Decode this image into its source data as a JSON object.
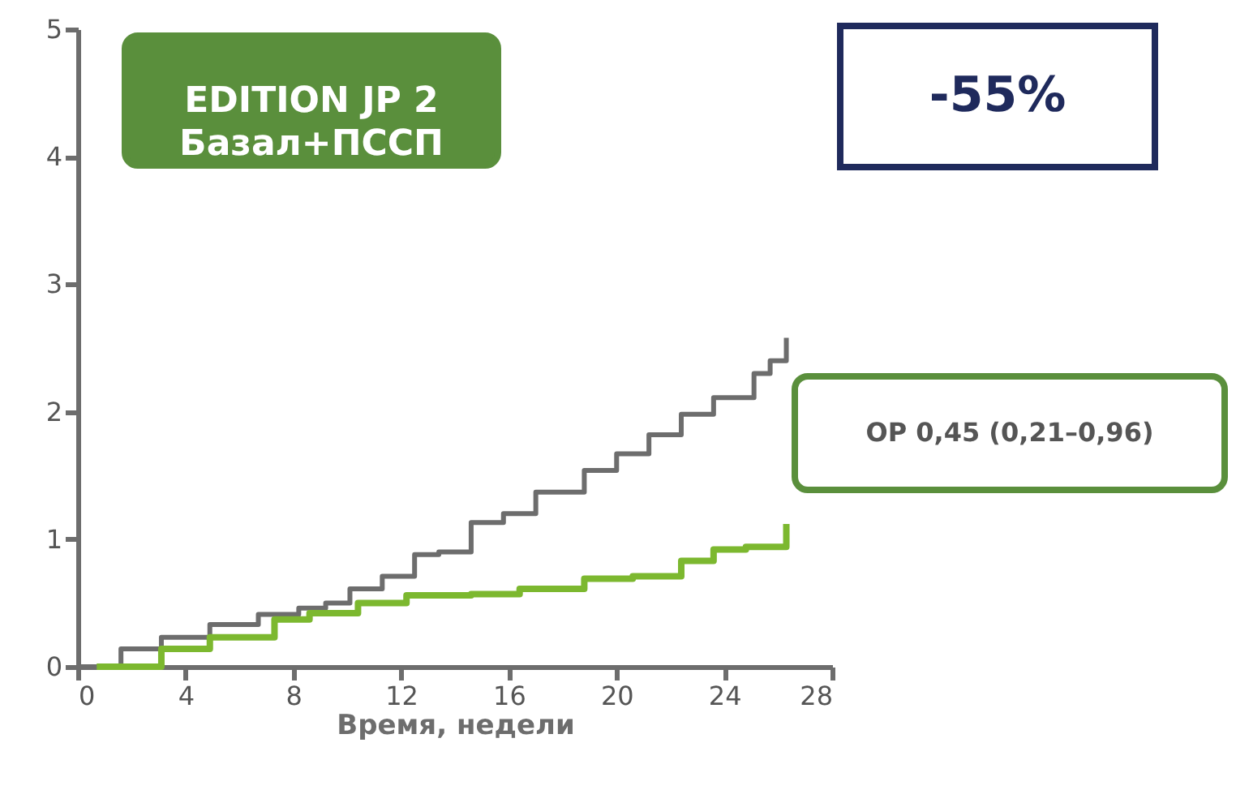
{
  "chart_data": {
    "type": "step",
    "xlabel": "Время, недели",
    "xlim": [
      0,
      28
    ],
    "xticks": [
      0,
      4,
      8,
      12,
      16,
      20,
      24,
      28
    ],
    "ylim": [
      0,
      5
    ],
    "yticks": [
      0,
      1,
      2,
      3,
      4,
      5
    ],
    "grid": false,
    "line_style": "solid",
    "series": [
      {
        "color": "#6d6d6d",
        "x": [
          0,
          1.6,
          3.1,
          4.9,
          6.7,
          8.2,
          9.2,
          10.1,
          11.3,
          12.5,
          13.4,
          14.6,
          15.8,
          17,
          18.8,
          20,
          21.2,
          22.4,
          23.6,
          25.1,
          25.7,
          26.3
        ],
        "values": [
          0,
          0.14,
          0.23,
          0.33,
          0.41,
          0.46,
          0.5,
          0.61,
          0.71,
          0.88,
          0.9,
          1.13,
          1.2,
          1.37,
          1.54,
          1.67,
          1.82,
          1.98,
          2.11,
          2.3,
          2.4,
          2.58
        ]
      },
      {
        "color": "#7cb82f",
        "x": [
          0.7,
          3.1,
          4.9,
          7.3,
          8.6,
          10.4,
          12.2,
          14.6,
          16.4,
          18.8,
          20.6,
          22.4,
          23.6,
          24.8,
          26.3
        ],
        "values": [
          0,
          0.14,
          0.23,
          0.37,
          0.42,
          0.5,
          0.56,
          0.57,
          0.61,
          0.69,
          0.71,
          0.83,
          0.92,
          0.94,
          1.12
        ]
      }
    ],
    "annotations": [
      "EDITION JP 2\nБазал+ПССП",
      "-55%",
      "ОР 0,45 (0,21–0,96)"
    ]
  }
}
